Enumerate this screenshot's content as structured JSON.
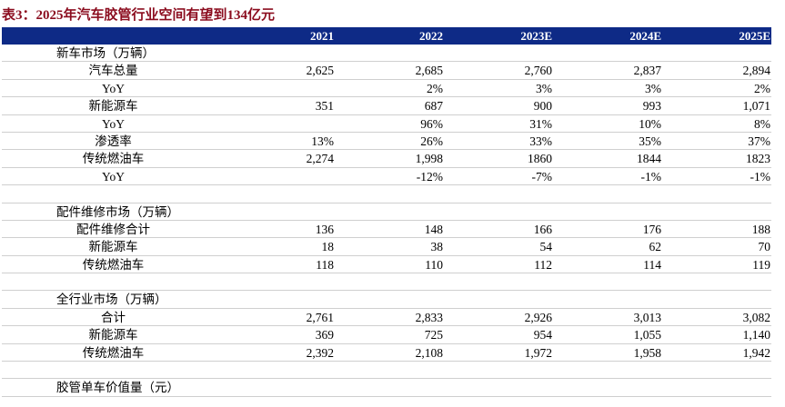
{
  "title": "表3：2025年汽车胶管行业空间有望到134亿元",
  "header": [
    "2021",
    "2022",
    "2023E",
    "2024E",
    "2025E"
  ],
  "rows": [
    {
      "label": "新车市场（万辆）",
      "section": true,
      "values": [
        "",
        "",
        "",
        "",
        ""
      ]
    },
    {
      "label": "汽车总量",
      "values": [
        "2,625",
        "2,685",
        "2,760",
        "2,837",
        "2,894"
      ]
    },
    {
      "label": "YoY",
      "values": [
        "",
        "2%",
        "3%",
        "3%",
        "2%"
      ]
    },
    {
      "label": "新能源车",
      "values": [
        "351",
        "687",
        "900",
        "993",
        "1,071"
      ]
    },
    {
      "label": "YoY",
      "values": [
        "",
        "96%",
        "31%",
        "10%",
        "8%"
      ]
    },
    {
      "label": "渗透率",
      "values": [
        "13%",
        "26%",
        "33%",
        "35%",
        "37%"
      ]
    },
    {
      "label": "传统燃油车",
      "values": [
        "2,274",
        "1,998",
        "1860",
        "1844",
        "1823"
      ]
    },
    {
      "label": "YoY",
      "values": [
        "",
        "-12%",
        "-7%",
        "-1%",
        "-1%"
      ]
    },
    {
      "label": "",
      "blank": true,
      "values": [
        "",
        "",
        "",
        "",
        ""
      ]
    },
    {
      "label": "配件维修市场（万辆）",
      "section": true,
      "values": [
        "",
        "",
        "",
        "",
        ""
      ]
    },
    {
      "label": "配件维修合计",
      "values": [
        "136",
        "148",
        "166",
        "176",
        "188"
      ]
    },
    {
      "label": "新能源车",
      "values": [
        "18",
        "38",
        "54",
        "62",
        "70"
      ]
    },
    {
      "label": "传统燃油车",
      "values": [
        "118",
        "110",
        "112",
        "114",
        "119"
      ]
    },
    {
      "label": "",
      "blank": true,
      "values": [
        "",
        "",
        "",
        "",
        ""
      ]
    },
    {
      "label": "全行业市场（万辆）",
      "section": true,
      "values": [
        "",
        "",
        "",
        "",
        ""
      ]
    },
    {
      "label": "合计",
      "values": [
        "2,761",
        "2,833",
        "2,926",
        "3,013",
        "3,082"
      ]
    },
    {
      "label": "新能源车",
      "values": [
        "369",
        "725",
        "954",
        "1,055",
        "1,140"
      ]
    },
    {
      "label": "传统燃油车",
      "values": [
        "2,392",
        "2,108",
        "1,972",
        "1,958",
        "1,942"
      ]
    },
    {
      "label": "",
      "blank": true,
      "values": [
        "",
        "",
        "",
        "",
        ""
      ]
    },
    {
      "label": "胶管单车价值量（元）",
      "section": true,
      "values": [
        "",
        "",
        "",
        "",
        ""
      ]
    }
  ]
}
